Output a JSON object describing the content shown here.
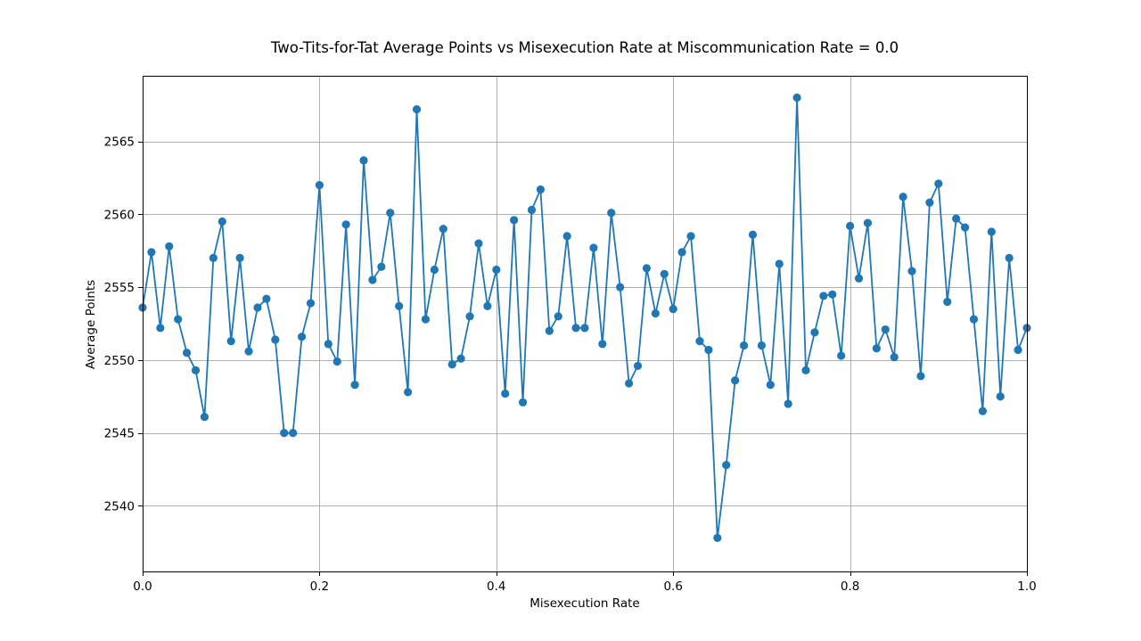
{
  "chart_data": {
    "type": "line",
    "title": "Two-Tits-for-Tat Average Points vs Misexecution Rate at Miscommunication Rate = 0.0",
    "xlabel": "Misexecution Rate",
    "ylabel": "Average Points",
    "xlim": [
      0.0,
      1.0
    ],
    "ylim": [
      2535.5,
      2569.5
    ],
    "grid": true,
    "x_ticks": [
      0.0,
      0.2,
      0.4,
      0.6,
      0.8,
      1.0
    ],
    "x_tick_labels": [
      "0.0",
      "0.2",
      "0.4",
      "0.6",
      "0.8",
      "1.0"
    ],
    "y_ticks": [
      2540,
      2545,
      2550,
      2555,
      2560,
      2565
    ],
    "y_tick_labels": [
      "2540",
      "2545",
      "2550",
      "2555",
      "2560",
      "2565"
    ],
    "color": "#1f77b4",
    "series": [
      {
        "x": [
          0.0,
          0.01,
          0.02,
          0.03,
          0.04,
          0.05,
          0.06,
          0.07,
          0.08,
          0.09,
          0.1,
          0.11,
          0.12,
          0.13,
          0.14,
          0.15,
          0.16,
          0.17,
          0.18,
          0.19,
          0.2,
          0.21,
          0.22,
          0.23,
          0.24,
          0.25,
          0.26,
          0.27,
          0.28,
          0.29,
          0.3,
          0.31,
          0.32,
          0.33,
          0.34,
          0.35,
          0.36,
          0.37,
          0.38,
          0.39,
          0.4,
          0.41,
          0.42,
          0.43,
          0.44,
          0.45,
          0.46,
          0.47,
          0.48,
          0.49,
          0.5,
          0.51,
          0.52,
          0.53,
          0.54,
          0.55,
          0.56,
          0.57,
          0.58,
          0.59,
          0.6,
          0.61,
          0.62,
          0.63,
          0.64,
          0.65,
          0.66,
          0.67,
          0.68,
          0.69,
          0.7,
          0.71,
          0.72,
          0.73,
          0.74,
          0.75,
          0.76,
          0.77,
          0.78,
          0.79,
          0.8,
          0.81,
          0.82,
          0.83,
          0.84,
          0.85,
          0.86,
          0.87,
          0.88,
          0.89,
          0.9,
          0.91,
          0.92,
          0.93,
          0.94,
          0.95,
          0.96,
          0.97,
          0.98,
          0.99,
          1.0
        ],
        "values": [
          2553.6,
          2557.4,
          2552.2,
          2557.8,
          2552.8,
          2550.5,
          2549.3,
          2546.1,
          2557.0,
          2559.5,
          2551.3,
          2557.0,
          2550.6,
          2553.6,
          2554.2,
          2551.4,
          2545.0,
          2545.0,
          2551.6,
          2553.9,
          2562.0,
          2551.1,
          2549.9,
          2559.3,
          2548.3,
          2563.7,
          2555.5,
          2556.4,
          2560.1,
          2553.7,
          2547.8,
          2567.2,
          2552.8,
          2556.2,
          2559.0,
          2549.7,
          2550.1,
          2553.0,
          2558.0,
          2553.7,
          2556.2,
          2547.7,
          2559.6,
          2547.1,
          2560.3,
          2561.7,
          2552.0,
          2553.0,
          2558.5,
          2552.2,
          2552.2,
          2557.7,
          2551.1,
          2560.1,
          2555.0,
          2548.4,
          2549.6,
          2556.3,
          2553.2,
          2555.9,
          2553.5,
          2557.4,
          2558.5,
          2551.3,
          2550.7,
          2537.8,
          2542.8,
          2548.6,
          2551.0,
          2558.6,
          2551.0,
          2548.3,
          2556.6,
          2547.0,
          2568.0,
          2549.3,
          2551.9,
          2554.4,
          2554.5,
          2550.3,
          2559.2,
          2555.6,
          2559.4,
          2550.8,
          2552.1,
          2550.2,
          2561.2,
          2556.1,
          2548.9,
          2560.8,
          2562.1,
          2554.0,
          2559.7,
          2559.1,
          2552.8,
          2546.5,
          2558.8,
          2547.5,
          2557.0,
          2550.7,
          2552.2
        ]
      }
    ]
  }
}
